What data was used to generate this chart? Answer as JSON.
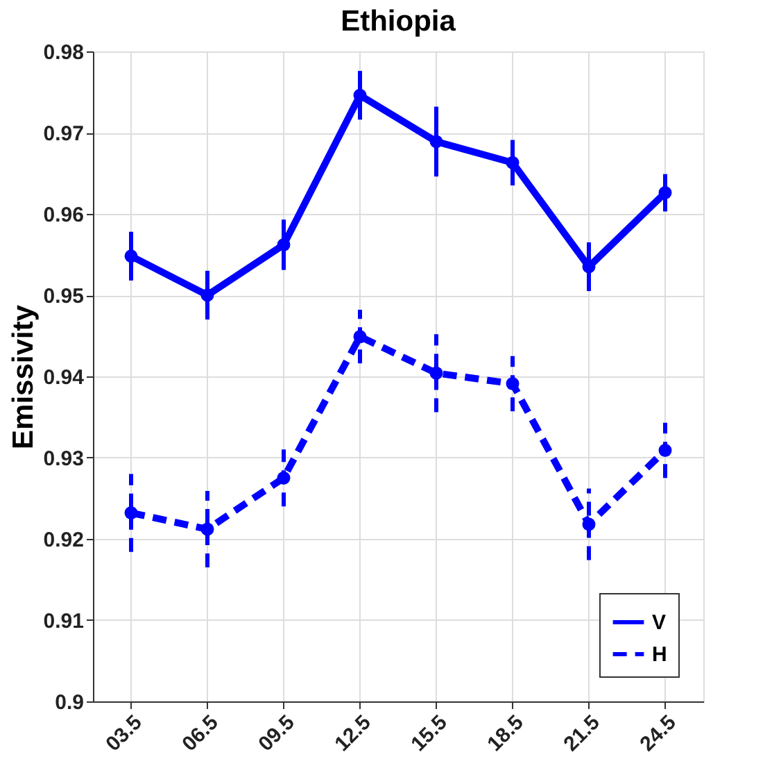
{
  "chart_data": {
    "type": "line",
    "title": "Ethiopia",
    "ylabel": "Emissivity",
    "categories": [
      "03.5",
      "06.5",
      "09.5",
      "12.5",
      "15.5",
      "18.5",
      "21.5",
      "24.5"
    ],
    "series": [
      {
        "name": "V",
        "color": "#0000ff",
        "line_style": "solid",
        "values": [
          0.9548,
          0.95,
          0.9562,
          0.9746,
          0.9689,
          0.9663,
          0.9535,
          0.9626
        ],
        "errors": [
          0.003,
          0.003,
          0.0031,
          0.003,
          0.0043,
          0.0028,
          0.003,
          0.0023
        ]
      },
      {
        "name": "H",
        "color": "#0000ff",
        "line_style": "dashed",
        "values": [
          0.9232,
          0.9212,
          0.9275,
          0.9449,
          0.9404,
          0.9391,
          0.9218,
          0.9309
        ],
        "errors": [
          0.0048,
          0.0047,
          0.0035,
          0.0033,
          0.0048,
          0.0034,
          0.0044,
          0.0034
        ]
      }
    ],
    "ylim": [
      0.9,
      0.98
    ],
    "yticks": [
      0.9,
      0.91,
      0.92,
      0.93,
      0.94,
      0.95,
      0.96,
      0.97,
      0.98
    ],
    "grid": true,
    "legend": "bottom right",
    "marker": "circle"
  }
}
